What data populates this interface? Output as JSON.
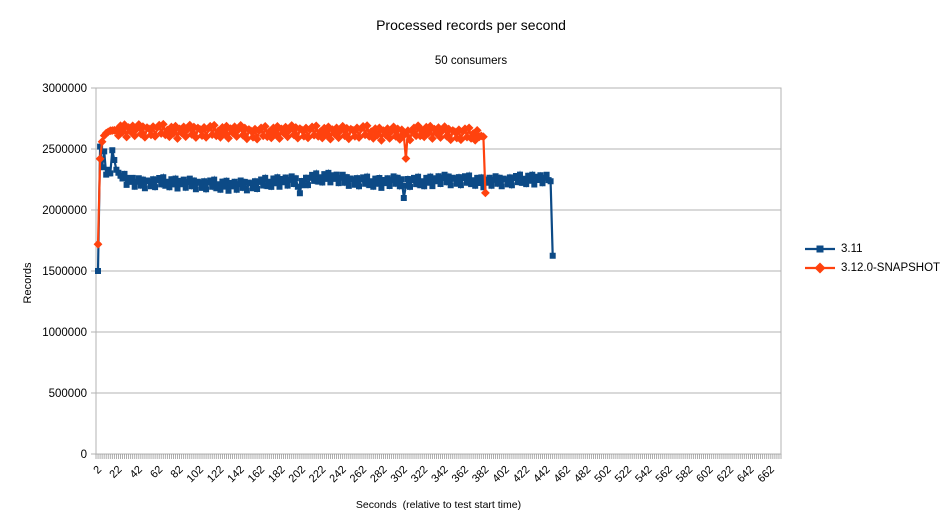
{
  "chart_data": {
    "type": "line",
    "title": "Processed records per second",
    "subtitle": "50 consumers",
    "xlabel": "Seconds  (relative to test start time)",
    "ylabel": "Records",
    "ylim": [
      0,
      3000000
    ],
    "xlim": [
      0,
      672
    ],
    "grid": "horizontal-only",
    "legend_position": "right",
    "background_color": "#ffffff",
    "grid_color": "#b3b3b3",
    "axis_color": "#b3b3b3",
    "minor_tick_color": "#999999",
    "text_color": "#000000",
    "yticks": [
      0,
      500000,
      1000000,
      1500000,
      2000000,
      2500000,
      3000000
    ],
    "xticks": [
      2,
      22,
      42,
      62,
      82,
      102,
      122,
      142,
      162,
      182,
      202,
      222,
      242,
      262,
      282,
      302,
      322,
      342,
      362,
      382,
      402,
      422,
      442,
      462,
      482,
      502,
      522,
      542,
      562,
      582,
      602,
      622,
      642,
      662
    ],
    "x_minor_step": 2,
    "series": [
      {
        "name": "3.11",
        "color": "#0c4a86",
        "marker": "square",
        "x_start": 2,
        "x_end": 448,
        "x_step": 2,
        "noise_from": 26,
        "anchors": [
          [
            2,
            1500000
          ],
          [
            4,
            2520000
          ],
          [
            6,
            2350000
          ],
          [
            8,
            2480000
          ],
          [
            10,
            2290000
          ],
          [
            12,
            2330000
          ],
          [
            14,
            2300000
          ],
          [
            16,
            2490000
          ],
          [
            18,
            2410000
          ],
          [
            20,
            2330000
          ],
          [
            24,
            2280000
          ],
          [
            30,
            2250000
          ],
          [
            40,
            2220000
          ],
          [
            60,
            2230000
          ],
          [
            80,
            2220000
          ],
          [
            100,
            2215000
          ],
          [
            120,
            2205000
          ],
          [
            140,
            2200000
          ],
          [
            160,
            2215000
          ],
          [
            180,
            2235000
          ],
          [
            198,
            2235000
          ],
          [
            200,
            2120000
          ],
          [
            202,
            2230000
          ],
          [
            212,
            2255000
          ],
          [
            230,
            2270000
          ],
          [
            244,
            2245000
          ],
          [
            260,
            2235000
          ],
          [
            280,
            2225000
          ],
          [
            298,
            2240000
          ],
          [
            300,
            2235000
          ],
          [
            302,
            2090000
          ],
          [
            304,
            2230000
          ],
          [
            320,
            2230000
          ],
          [
            340,
            2250000
          ],
          [
            360,
            2245000
          ],
          [
            380,
            2230000
          ],
          [
            400,
            2240000
          ],
          [
            420,
            2250000
          ],
          [
            438,
            2255000
          ],
          [
            444,
            2245000
          ],
          [
            446,
            2235000
          ],
          [
            448,
            1625000
          ]
        ],
        "noise": [
          8000,
          -32000,
          24000,
          -41000,
          15000,
          33000,
          -18000,
          42000,
          -27000,
          6000,
          -38000,
          29000,
          -12000,
          36000,
          -44000,
          19000,
          -8000,
          31000,
          -35000,
          12000,
          40000,
          -22000,
          26000,
          -45000,
          17000
        ]
      },
      {
        "name": "3.12.0-SNAPSHOT",
        "color": "#ff420e",
        "marker": "diamond",
        "x_start": 2,
        "x_end": 382,
        "x_step": 2,
        "noise_from": 22,
        "anchors": [
          [
            2,
            1720000
          ],
          [
            4,
            2420000
          ],
          [
            6,
            2560000
          ],
          [
            8,
            2610000
          ],
          [
            10,
            2630000
          ],
          [
            14,
            2650000
          ],
          [
            20,
            2655000
          ],
          [
            40,
            2650000
          ],
          [
            60,
            2655000
          ],
          [
            80,
            2640000
          ],
          [
            100,
            2650000
          ],
          [
            120,
            2640000
          ],
          [
            140,
            2645000
          ],
          [
            160,
            2630000
          ],
          [
            180,
            2640000
          ],
          [
            200,
            2645000
          ],
          [
            220,
            2635000
          ],
          [
            240,
            2635000
          ],
          [
            260,
            2645000
          ],
          [
            280,
            2625000
          ],
          [
            300,
            2635000
          ],
          [
            302,
            2600000
          ],
          [
            304,
            2460000
          ],
          [
            306,
            2620000
          ],
          [
            320,
            2645000
          ],
          [
            340,
            2635000
          ],
          [
            360,
            2625000
          ],
          [
            376,
            2615000
          ],
          [
            380,
            2600000
          ],
          [
            382,
            2140000
          ]
        ],
        "noise": [
          12000,
          -38000,
          30000,
          -50000,
          20000,
          42000,
          -25000,
          52000,
          -33000,
          8000,
          -45000,
          36000,
          -15000,
          46000,
          -54000,
          24000,
          -10000,
          38000,
          -42000,
          16000,
          50000,
          -28000,
          32000,
          -55000,
          22000
        ]
      }
    ]
  }
}
